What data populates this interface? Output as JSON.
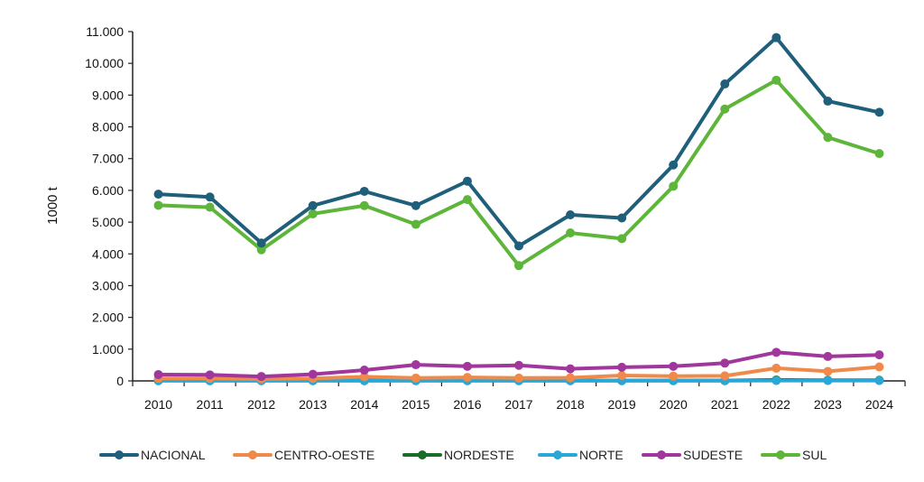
{
  "chart_data": {
    "type": "line",
    "ylabel": "1000 t",
    "xlabel": "",
    "x": [
      2010,
      2011,
      2012,
      2013,
      2014,
      2015,
      2016,
      2017,
      2018,
      2019,
      2020,
      2021,
      2022,
      2023,
      2024
    ],
    "ylim": [
      0,
      11000
    ],
    "yticks": [
      0,
      1000,
      2000,
      3000,
      4000,
      5000,
      6000,
      7000,
      8000,
      9000,
      10000,
      11000
    ],
    "ytick_labels": [
      "0",
      "1.000",
      "2.000",
      "3.000",
      "4.000",
      "5.000",
      "6.000",
      "7.000",
      "8.000",
      "9.000",
      "10.000",
      "11.000"
    ],
    "grid": false,
    "legend_position": "bottom",
    "series": [
      {
        "name": "NACIONAL",
        "color": "#1f5f7a",
        "values": [
          5880,
          5790,
          4340,
          5520,
          5970,
          5520,
          6290,
          4250,
          5230,
          5130,
          6800,
          9350,
          10810,
          8810,
          8460
        ]
      },
      {
        "name": "CENTRO-OESTE",
        "color": "#f08a4b",
        "values": [
          80,
          80,
          60,
          80,
          130,
          90,
          110,
          90,
          100,
          170,
          150,
          160,
          400,
          300,
          440
        ]
      },
      {
        "name": "NORDESTE",
        "color": "#1b6b2a",
        "values": [
          10,
          10,
          10,
          10,
          10,
          10,
          10,
          10,
          10,
          10,
          10,
          10,
          30,
          20,
          20
        ]
      },
      {
        "name": "NORTE",
        "color": "#29a8d8",
        "values": [
          5,
          5,
          5,
          5,
          5,
          5,
          5,
          5,
          5,
          5,
          5,
          5,
          10,
          10,
          10
        ]
      },
      {
        "name": "SUDESTE",
        "color": "#a0379c",
        "values": [
          200,
          190,
          140,
          210,
          340,
          510,
          460,
          490,
          380,
          430,
          460,
          560,
          900,
          770,
          820
        ]
      },
      {
        "name": "SUL",
        "color": "#5db53a",
        "values": [
          5530,
          5470,
          4130,
          5260,
          5520,
          4930,
          5710,
          3630,
          4660,
          4480,
          6130,
          8560,
          9470,
          7670,
          7160
        ]
      }
    ]
  }
}
